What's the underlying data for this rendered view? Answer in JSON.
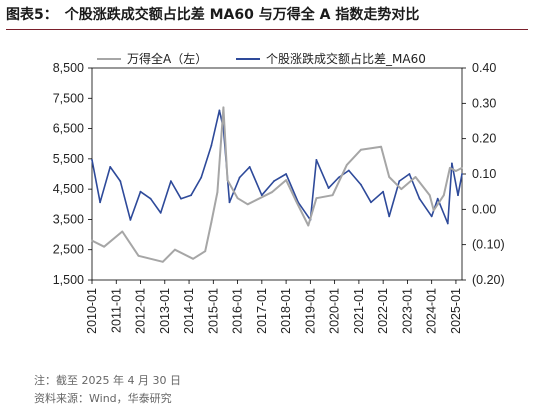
{
  "title": "图表5：　个股涨跌成交额占比差 MA60 与万得全 A 指数走势对比",
  "footnote": "注：截至 2025 年 4 月 30 日",
  "source": "资料来源：Wind，华泰研究",
  "colors": {
    "wind_a": "#a6a6a6",
    "ma60": "#2e4a9a",
    "title_rule": "#7a1f2b"
  },
  "chart_data": {
    "type": "line",
    "x_tick_labels": [
      "2010-01",
      "2011-01",
      "2012-01",
      "2013-01",
      "2014-01",
      "2015-01",
      "2016-01",
      "2017-01",
      "2018-01",
      "2019-01",
      "2020-01",
      "2021-01",
      "2022-01",
      "2023-01",
      "2024-01",
      "2025-01"
    ],
    "x_range": [
      "2010-01",
      "2025-04"
    ],
    "y_left": {
      "range": [
        1500,
        8500
      ],
      "ticks": [
        "1,500",
        "2,500",
        "3,500",
        "4,500",
        "5,500",
        "6,500",
        "7,500",
        "8,500"
      ]
    },
    "y_right": {
      "range": [
        -0.2,
        0.4
      ],
      "ticks": [
        "(0.20)",
        "(0.10)",
        "0.00",
        "0.10",
        "0.20",
        "0.30",
        "0.40"
      ]
    },
    "legend_position": "top",
    "series": [
      {
        "name": "万得全A（左）",
        "axis": "left",
        "x": [
          "2010-01",
          "2010-07",
          "2011-04",
          "2011-12",
          "2012-12",
          "2013-06",
          "2014-03",
          "2014-09",
          "2014-12",
          "2015-03",
          "2015-06",
          "2015-08",
          "2016-01",
          "2016-06",
          "2017-06",
          "2018-01",
          "2018-06",
          "2018-12",
          "2019-04",
          "2019-12",
          "2020-07",
          "2021-02",
          "2021-12",
          "2022-04",
          "2022-10",
          "2023-05",
          "2023-12",
          "2024-02",
          "2024-07",
          "2024-10",
          "2025-01",
          "2025-04"
        ],
        "values": [
          2800,
          2600,
          3100,
          2300,
          2100,
          2500,
          2200,
          2450,
          3400,
          4400,
          7200,
          4800,
          4200,
          4000,
          4400,
          4800,
          4100,
          3300,
          4200,
          4300,
          5300,
          5800,
          5900,
          4900,
          4500,
          4900,
          4300,
          3800,
          4300,
          5200,
          5100,
          5200
        ]
      },
      {
        "name": "个股涨跌成交额占比差_MA60",
        "axis": "right",
        "x": [
          "2010-01",
          "2010-05",
          "2010-10",
          "2011-03",
          "2011-08",
          "2012-01",
          "2012-06",
          "2012-11",
          "2013-04",
          "2013-09",
          "2014-02",
          "2014-07",
          "2014-12",
          "2015-04",
          "2015-06",
          "2015-09",
          "2016-02",
          "2016-07",
          "2017-01",
          "2017-07",
          "2018-01",
          "2018-07",
          "2019-01",
          "2019-04",
          "2019-10",
          "2020-03",
          "2020-08",
          "2021-02",
          "2021-07",
          "2022-01",
          "2022-04",
          "2022-09",
          "2023-02",
          "2023-07",
          "2024-01",
          "2024-04",
          "2024-09",
          "2024-11",
          "2025-02",
          "2025-04"
        ],
        "values": [
          0.14,
          0.02,
          0.12,
          0.08,
          -0.03,
          0.05,
          0.03,
          -0.01,
          0.08,
          0.03,
          0.04,
          0.09,
          0.18,
          0.28,
          0.23,
          0.02,
          0.09,
          0.12,
          0.04,
          0.08,
          0.1,
          0.02,
          -0.03,
          0.14,
          0.06,
          0.09,
          0.11,
          0.07,
          0.02,
          0.05,
          -0.02,
          0.08,
          0.1,
          0.03,
          -0.02,
          0.03,
          -0.04,
          0.13,
          0.04,
          0.1
        ]
      }
    ]
  }
}
